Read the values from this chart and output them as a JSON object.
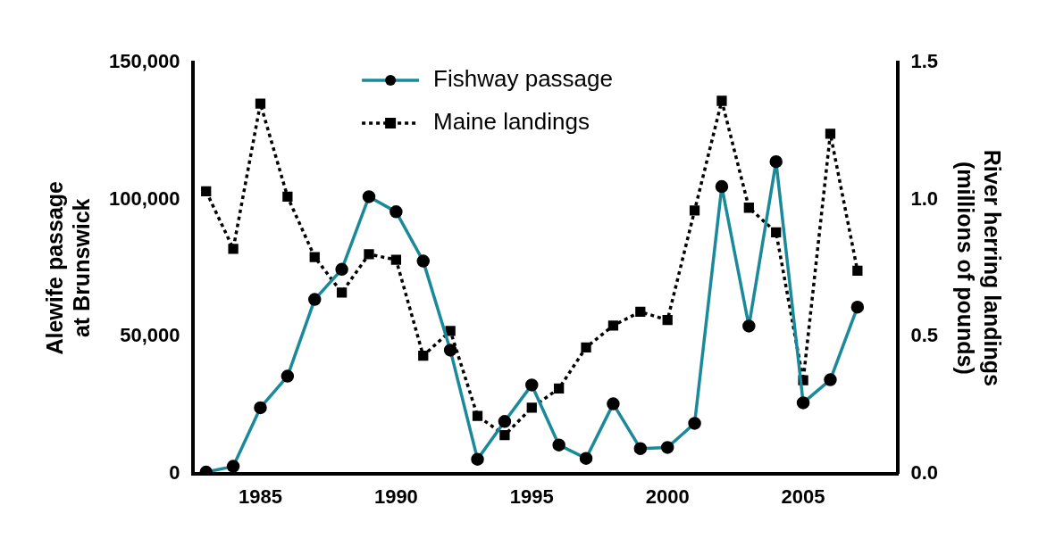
{
  "chart_data": {
    "type": "line",
    "ylabel": "Alewife passage\nat Brunswick",
    "y2label": "River herring landings\n(millions of pounds)",
    "x": [
      1983,
      1984,
      1985,
      1986,
      1987,
      1988,
      1989,
      1990,
      1991,
      1992,
      1993,
      1994,
      1995,
      1996,
      1997,
      1998,
      1999,
      2000,
      2001,
      2002,
      2003,
      2004,
      2005,
      2006,
      2007
    ],
    "series": [
      {
        "name": "Fishway passage",
        "color": "#1a8a9a",
        "marker": "circle",
        "line_style": "solid",
        "values": [
          500,
          2600,
          24000,
          35500,
          63500,
          74500,
          101000,
          95500,
          77500,
          45000,
          5200,
          19000,
          32300,
          10400,
          5500,
          25400,
          9100,
          9500,
          18300,
          104700,
          53800,
          113800,
          25800,
          34200,
          60700
        ]
      },
      {
        "name": "Maine landings",
        "color": "#000000",
        "marker": "square",
        "line_style": "dotted",
        "axis": "y2",
        "values": [
          1.03,
          0.82,
          1.35,
          1.01,
          0.79,
          0.66,
          0.8,
          0.78,
          0.43,
          0.52,
          0.21,
          0.14,
          0.24,
          0.31,
          0.46,
          0.54,
          0.59,
          0.56,
          0.96,
          1.36,
          0.97,
          0.88,
          0.34,
          1.24,
          0.74
        ]
      }
    ],
    "xlim": [
      1982.5,
      2008.5
    ],
    "xticks": [
      1985,
      1990,
      1995,
      2000,
      2005
    ],
    "ylim": [
      0,
      150000
    ],
    "yticks": [
      0,
      {
        "value": 50000,
        "label": "50,000"
      },
      {
        "value": 100000,
        "label": "100,000"
      },
      {
        "value": 150000,
        "label": "150,000"
      }
    ],
    "y2lim": [
      0,
      1.5
    ],
    "y2ticks": [
      {
        "value": 0,
        "label": "0.0"
      },
      0.5,
      {
        "value": 1,
        "label": "1.0"
      },
      1.5
    ],
    "grid": false,
    "legend": "top"
  }
}
